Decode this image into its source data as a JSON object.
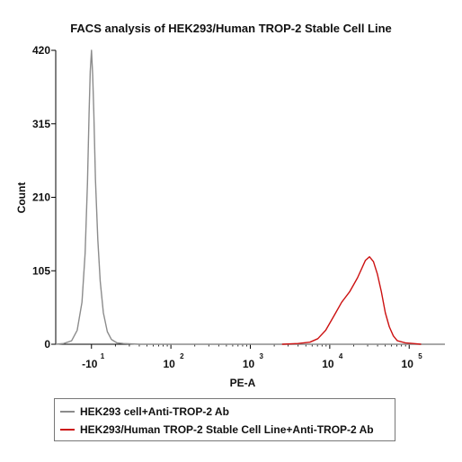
{
  "chart_data": {
    "type": "line",
    "title": "FACS analysis of HEK293/Human TROP-2 Stable Cell Line",
    "xlabel": "PE-A",
    "ylabel": "Count",
    "x_scale": "biexponential",
    "x_ticks": [
      {
        "value": 0,
        "label": "-10",
        "exponent": "1"
      },
      {
        "value": 1,
        "label": "10",
        "exponent": "2"
      },
      {
        "value": 2,
        "label": "10",
        "exponent": "3"
      },
      {
        "value": 3,
        "label": "10",
        "exponent": "4"
      },
      {
        "value": 4,
        "label": "10",
        "exponent": "5"
      }
    ],
    "xlim": [
      -0.45,
      4.45
    ],
    "ylim": [
      0,
      420
    ],
    "y_ticks": [
      0,
      105,
      210,
      315,
      420
    ],
    "grid": false,
    "legend_position": "bottom",
    "series": [
      {
        "name": "HEK293 cell+Anti-TROP-2 Ab",
        "color": "#8c8c8c",
        "x": [
          -0.45,
          -0.35,
          -0.25,
          -0.18,
          -0.12,
          -0.08,
          -0.05,
          -0.03,
          -0.015,
          0,
          0.015,
          0.03,
          0.05,
          0.08,
          0.11,
          0.15,
          0.2,
          0.25,
          0.32,
          0.4,
          0.6,
          1.0,
          2.0,
          3.0,
          4.45
        ],
        "y": [
          0,
          1,
          5,
          20,
          60,
          130,
          230,
          330,
          390,
          420,
          385,
          330,
          235,
          150,
          90,
          45,
          18,
          7,
          2,
          1,
          0,
          0,
          0,
          0,
          0
        ]
      },
      {
        "name": "HEK293/Human TROP-2 Stable Cell Line+Anti-TROP-2 Ab",
        "color": "#cc1111",
        "x": [
          2.4,
          2.6,
          2.75,
          2.85,
          2.95,
          3.05,
          3.15,
          3.25,
          3.35,
          3.45,
          3.5,
          3.55,
          3.6,
          3.65,
          3.7,
          3.75,
          3.8,
          3.85,
          3.95,
          4.05,
          4.15
        ],
        "y": [
          0,
          1,
          3,
          8,
          20,
          40,
          60,
          75,
          95,
          120,
          125,
          118,
          100,
          75,
          45,
          25,
          12,
          5,
          2,
          1,
          0
        ]
      }
    ]
  }
}
